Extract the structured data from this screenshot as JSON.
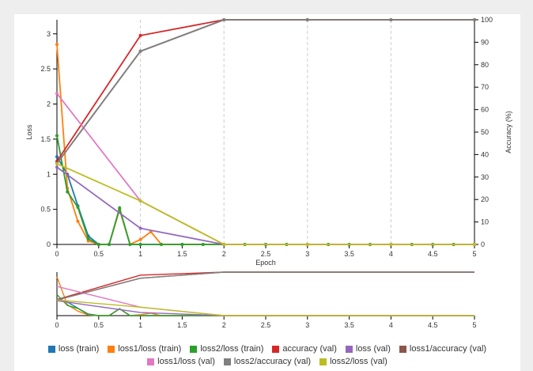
{
  "chart_data": {
    "type": "line",
    "xlabel": "Epoch",
    "ylabel_left": "Loss",
    "ylabel_right": "Accuracy (%)",
    "xlim": [
      0,
      5
    ],
    "ylim_left": [
      0,
      3.2
    ],
    "ylim_right": [
      0,
      100
    ],
    "x_ticks": [
      "0",
      "0.5",
      "1",
      "1.5",
      "2",
      "2.5",
      "3",
      "3.5",
      "4",
      "4.5",
      "5"
    ],
    "y_left_ticks": [
      "0",
      "0.5",
      "1",
      "1.5",
      "2",
      "2.5",
      "3"
    ],
    "y_right_ticks": [
      "0",
      "10",
      "20",
      "30",
      "40",
      "50",
      "60",
      "70",
      "80",
      "90",
      "100"
    ],
    "grid": "vertical dashed at integer epochs",
    "legend_position": "bottom",
    "series": [
      {
        "name": "loss (train)",
        "color": "#1f77b4",
        "axis": "left",
        "x": [
          0,
          0.125,
          0.25,
          0.375,
          0.5,
          0.625,
          0.75,
          0.875,
          1,
          1.25,
          1.5,
          1.75,
          2,
          2.25,
          2.5,
          2.75,
          3,
          3.25,
          3.5,
          3.75,
          4,
          4.25,
          4.5,
          4.75,
          5
        ],
        "y": [
          1.25,
          1.0,
          0.55,
          0.12,
          0.0,
          0.0,
          0.5,
          0.0,
          0.0,
          0.0,
          0.0,
          0.0,
          0.0,
          0.0,
          0.0,
          0.0,
          0.0,
          0.0,
          0.0,
          0.0,
          0.0,
          0.0,
          0.0,
          0.0,
          0.0
        ]
      },
      {
        "name": "loss1/loss (train)",
        "color": "#ff7f0e",
        "axis": "left",
        "x": [
          0,
          0.125,
          0.25,
          0.375,
          0.5,
          0.625,
          0.75,
          0.875,
          1,
          1.125,
          1.25,
          1.5,
          1.75,
          2,
          2.25,
          2.5,
          2.75,
          3,
          3.25,
          3.5,
          3.75,
          4,
          4.25,
          4.5,
          4.75,
          5
        ],
        "y": [
          2.85,
          0.8,
          0.33,
          0.05,
          0.0,
          0.0,
          0.5,
          0.0,
          0.07,
          0.18,
          0.0,
          0.0,
          0.0,
          0.0,
          0.0,
          0.0,
          0.0,
          0.0,
          0.0,
          0.0,
          0.0,
          0.0,
          0.0,
          0.0,
          0.0,
          0.0
        ]
      },
      {
        "name": "loss2/loss (train)",
        "color": "#2ca02c",
        "axis": "left",
        "x": [
          0,
          0.125,
          0.25,
          0.375,
          0.5,
          0.625,
          0.75,
          0.875,
          1,
          1.25,
          1.5,
          1.75,
          2,
          2.25,
          2.5,
          2.75,
          3,
          3.25,
          3.5,
          3.75,
          4,
          4.25,
          4.5,
          4.75,
          5
        ],
        "y": [
          1.55,
          0.75,
          0.53,
          0.08,
          0.0,
          0.0,
          0.52,
          0.0,
          0.0,
          0.0,
          0.0,
          0.0,
          0.0,
          0.0,
          0.0,
          0.0,
          0.0,
          0.0,
          0.0,
          0.0,
          0.0,
          0.0,
          0.0,
          0.0,
          0.0
        ]
      },
      {
        "name": "accuracy (val)",
        "color": "#d62728",
        "axis": "right",
        "x": [
          0,
          1,
          2,
          3,
          4,
          5
        ],
        "y": [
          37,
          93,
          100,
          100,
          100,
          100
        ]
      },
      {
        "name": "loss (val)",
        "color": "#9467bd",
        "axis": "left",
        "x": [
          0,
          1,
          2,
          3,
          4,
          5
        ],
        "y": [
          1.1,
          0.23,
          0.0,
          0.0,
          0.0,
          0.0
        ]
      },
      {
        "name": "loss1/accuracy (val)",
        "color": "#8c564b",
        "axis": "right",
        "x": [
          0,
          1,
          2,
          3,
          4,
          5
        ],
        "y": [
          36,
          86,
          100,
          100,
          100,
          100
        ]
      },
      {
        "name": "loss1/loss (val)",
        "color": "#e377c2",
        "axis": "left",
        "x": [
          0,
          1,
          2,
          3,
          4,
          5
        ],
        "y": [
          2.15,
          0.62,
          0.0,
          0.0,
          0.0,
          0.0
        ]
      },
      {
        "name": "loss2/accuracy (val)",
        "color": "#7f7f7f",
        "axis": "right",
        "x": [
          0,
          1,
          2,
          3,
          4,
          5
        ],
        "y": [
          36,
          86,
          100,
          100,
          100,
          100
        ]
      },
      {
        "name": "loss2/loss (val)",
        "color": "#bcbd22",
        "axis": "left",
        "x": [
          0,
          1,
          2,
          3,
          4,
          5
        ],
        "y": [
          1.15,
          0.62,
          0.0,
          0.0,
          0.0,
          0.0
        ]
      }
    ]
  },
  "legend_rows": [
    [
      "loss (train)",
      "loss1/loss (train)",
      "loss2/loss (train)",
      "accuracy (val)",
      "loss (val)",
      "loss1/accuracy (val)"
    ],
    [
      "loss1/loss (val)",
      "loss2/accuracy (val)",
      "loss2/loss (val)"
    ]
  ]
}
